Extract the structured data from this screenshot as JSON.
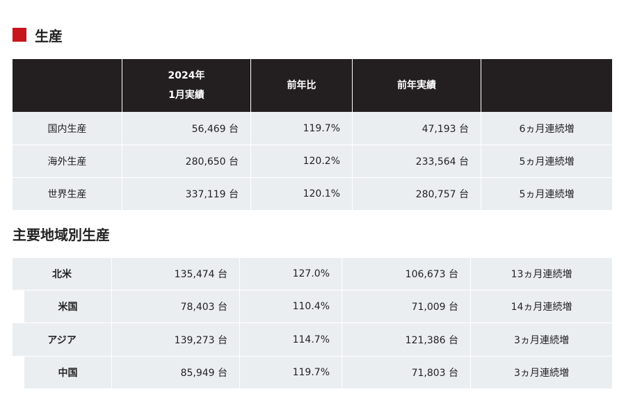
{
  "sections": [
    {
      "heading": "生産",
      "table": {
        "header": [
          "2024年\n1月実績",
          "前年比",
          "前年実績"
        ],
        "rows": [
          [
            "国内生産",
            "56,469 台",
            "119.7%",
            "47,193 台",
            "6ヵ月連続増"
          ],
          [
            "海外生産",
            "280,650 台",
            "120.2%",
            "233,564 台",
            "5ヵ月連続増"
          ],
          [
            "世界生産",
            "337,119 台",
            "120.1%",
            "280,757 台",
            "5ヵ月連続増"
          ]
        ]
      }
    },
    {
      "heading": "主要地域別生産",
      "table": {
        "rows": [
          [
            "北米",
            "135,474 台",
            "127.0%",
            "106,673 台",
            "13ヵ月連続増"
          ],
          [
            "米国",
            "78,403 台",
            "110.4%",
            "71,009 台",
            "14ヵ月連続増"
          ],
          [
            "アジア",
            "139,273 台",
            "114.7%",
            "121,386 台",
            "3ヵ月連続増"
          ],
          [
            "中国",
            "85,949 台",
            "119.7%",
            "71,803 台",
            "3ヵ月連続増"
          ]
        ]
      }
    }
  ]
}
